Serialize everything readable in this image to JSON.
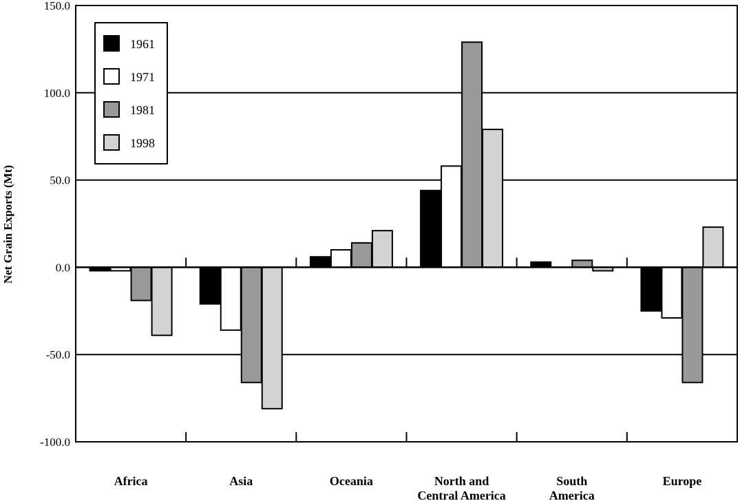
{
  "chart_data": {
    "type": "bar",
    "title": "",
    "xlabel": "",
    "ylabel": "Net Grain Exports (Mt)",
    "ylim": [
      -100,
      150
    ],
    "yticks": [
      "-100.0",
      "-50.0",
      "0.0",
      "50.0",
      "100.0",
      "150.0"
    ],
    "grid": "horizontal",
    "legend_position": "top-left",
    "categories": [
      [
        "Africa"
      ],
      [
        "Asia"
      ],
      [
        "Oceania"
      ],
      [
        "North and",
        "Central America"
      ],
      [
        "South",
        "America"
      ],
      [
        "Europe"
      ]
    ],
    "series": [
      {
        "name": "1961",
        "color": "#000000",
        "values": [
          -2,
          -21,
          6,
          44,
          3,
          -25
        ]
      },
      {
        "name": "1971",
        "color": "#ffffff",
        "values": [
          -2,
          -36,
          10,
          58,
          0,
          -29
        ]
      },
      {
        "name": "1981",
        "color": "#999999",
        "values": [
          -19,
          -66,
          14,
          129,
          4,
          -66
        ]
      },
      {
        "name": "1998",
        "color": "#d3d3d3",
        "values": [
          -39,
          -81,
          21,
          79,
          -2,
          23
        ]
      }
    ]
  }
}
